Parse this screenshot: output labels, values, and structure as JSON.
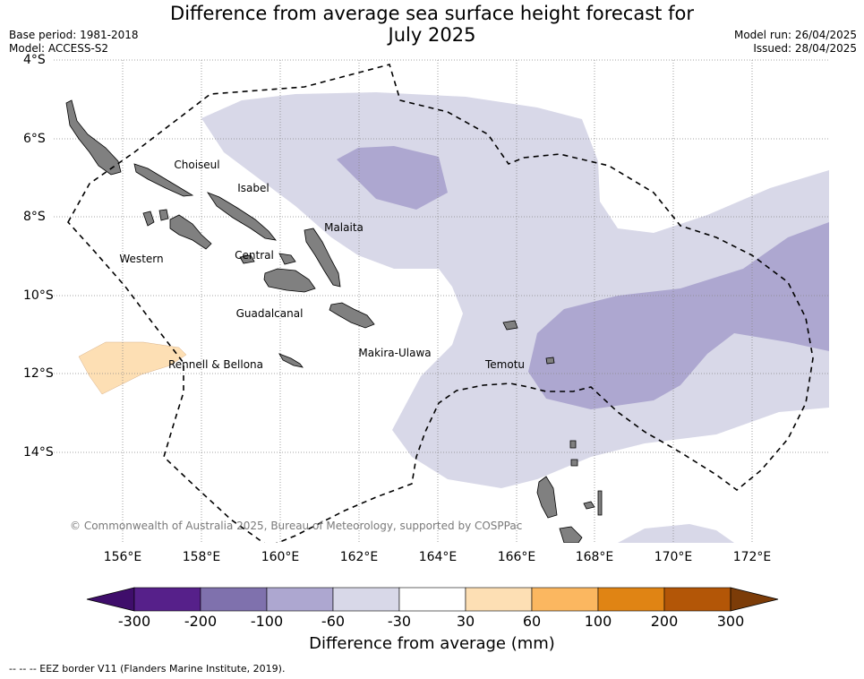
{
  "title_line1": "Difference from average sea surface height forecast for",
  "title_line2": "July 2025",
  "meta_left": {
    "base_period": "Base period: 1981-2018",
    "model": "Model: ACCESS-S2"
  },
  "meta_right": {
    "model_run": "Model run: 26/04/2025",
    "issued": "Issued: 28/04/2025"
  },
  "map": {
    "lon_ticks": [
      "156°E",
      "158°E",
      "160°E",
      "162°E",
      "164°E",
      "166°E",
      "168°E",
      "170°E",
      "172°E"
    ],
    "lat_ticks": [
      "4°S",
      "6°S",
      "8°S",
      "10°S",
      "12°S",
      "14°S"
    ],
    "regions": [
      "Choiseul",
      "Isabel",
      "Malaita",
      "Western",
      "Central",
      "Guadalcanal",
      "Makira-Ulawa",
      "Rennell & Bellona",
      "Temotu"
    ],
    "credit": "© Commonwealth of Australia 2025, Bureau of Meteorology, supported by COSPPac",
    "land_color": "#808080",
    "grid": true
  },
  "colorbar": {
    "colors": [
      "#3f0e6b",
      "#56208a",
      "#7f71ad",
      "#ada7d0",
      "#d8d8e8",
      "#ffffff",
      "#fddfb4",
      "#fbb760",
      "#e08414",
      "#b35607",
      "#7c3c08"
    ],
    "ticks": [
      "-300",
      "-200",
      "-100",
      "-60",
      "-30",
      "30",
      "60",
      "100",
      "200",
      "300"
    ],
    "title": "Difference from average (mm)"
  },
  "eez_note": "--  --  -- EEZ border V11 (Flanders Marine Institute, 2019)."
}
